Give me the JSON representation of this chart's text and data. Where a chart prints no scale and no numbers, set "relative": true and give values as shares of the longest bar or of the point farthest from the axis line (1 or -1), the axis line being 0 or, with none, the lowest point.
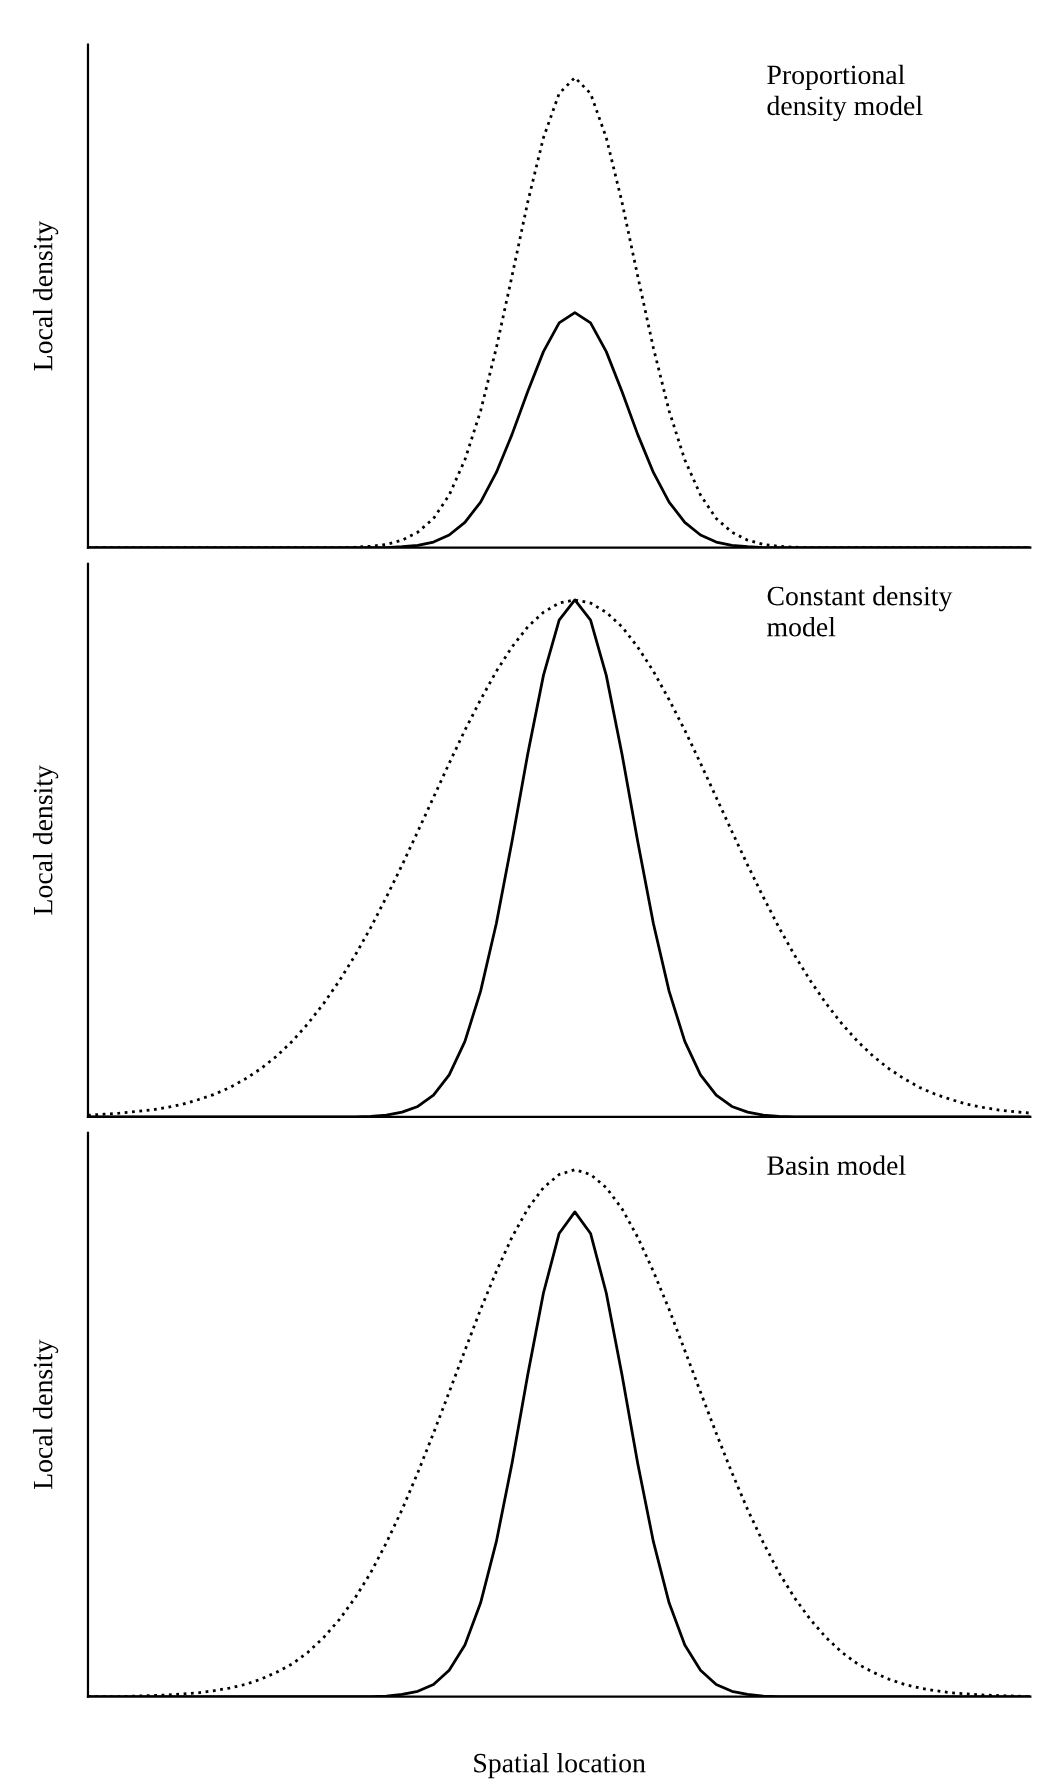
{
  "chart_data": [
    {
      "type": "line",
      "relative": true,
      "ylabel": "Local density",
      "annotations": [
        "Proportional\ndensity model"
      ],
      "categories": [
        null,
        null,
        null,
        null,
        null,
        null,
        null,
        null,
        null,
        null,
        null,
        null,
        null,
        null,
        null,
        null,
        null,
        null,
        null,
        null,
        null,
        null,
        null,
        null,
        null,
        null,
        null,
        null,
        null,
        null,
        null,
        null,
        null,
        null,
        null,
        null,
        null,
        null,
        null,
        null,
        null,
        null,
        null,
        null,
        null,
        null,
        null,
        null,
        null,
        null,
        null,
        null,
        null,
        null,
        null,
        null,
        null,
        null,
        null,
        null,
        null
      ],
      "series": [
        {
          "color": "#000000",
          "line_style": "dotted",
          "values": [
            0,
            0,
            0,
            0,
            0,
            0,
            0,
            0,
            0,
            0,
            0,
            0,
            0,
            0,
            0,
            0,
            0,
            0.001,
            0.003,
            0.007,
            0.016,
            0.033,
            0.062,
            0.112,
            0.187,
            0.291,
            0.425,
            0.578,
            0.735,
            0.872,
            0.966,
            1,
            0.966,
            0.872,
            0.735,
            0.578,
            0.425,
            0.291,
            0.187,
            0.112,
            0.062,
            0.033,
            0.016,
            0.007,
            0.003,
            0.001,
            0,
            0,
            0,
            0,
            0,
            0,
            0,
            0,
            0,
            0,
            0,
            0,
            0,
            0,
            0
          ]
        },
        {
          "color": "#000000",
          "line_style": "solid",
          "values": [
            0,
            0,
            0,
            0,
            0,
            0,
            0,
            0,
            0,
            0,
            0,
            0,
            0,
            0,
            0,
            0,
            0,
            0,
            0,
            0,
            0.002,
            0.005,
            0.012,
            0.027,
            0.054,
            0.097,
            0.16,
            0.241,
            0.332,
            0.417,
            0.478,
            0.5,
            0.478,
            0.417,
            0.332,
            0.241,
            0.16,
            0.097,
            0.054,
            0.027,
            0.012,
            0.005,
            0.002,
            0,
            0,
            0,
            0,
            0,
            0,
            0,
            0,
            0,
            0,
            0,
            0,
            0,
            0,
            0,
            0,
            0,
            0
          ]
        }
      ]
    },
    {
      "type": "line",
      "relative": true,
      "ylabel": "Local density",
      "annotations": [
        "Constant density\nmodel"
      ],
      "categories": [
        null,
        null,
        null,
        null,
        null,
        null,
        null,
        null,
        null,
        null,
        null,
        null,
        null,
        null,
        null,
        null,
        null,
        null,
        null,
        null,
        null,
        null,
        null,
        null,
        null,
        null,
        null,
        null,
        null,
        null,
        null,
        null,
        null,
        null,
        null,
        null,
        null,
        null,
        null,
        null,
        null,
        null,
        null,
        null,
        null,
        null,
        null,
        null,
        null,
        null,
        null,
        null,
        null,
        null,
        null,
        null,
        null,
        null,
        null,
        null,
        null
      ],
      "series": [
        {
          "color": "#000000",
          "line_style": "dotted",
          "values": [
            0.003,
            0.005,
            0.007,
            0.01,
            0.013,
            0.018,
            0.024,
            0.033,
            0.043,
            0.056,
            0.073,
            0.093,
            0.117,
            0.146,
            0.18,
            0.219,
            0.263,
            0.312,
            0.366,
            0.425,
            0.487,
            0.552,
            0.618,
            0.684,
            0.748,
            0.807,
            0.862,
            0.909,
            0.948,
            0.976,
            0.994,
            1,
            0.994,
            0.976,
            0.948,
            0.909,
            0.862,
            0.807,
            0.748,
            0.684,
            0.618,
            0.552,
            0.487,
            0.425,
            0.366,
            0.312,
            0.263,
            0.219,
            0.18,
            0.146,
            0.117,
            0.093,
            0.073,
            0.056,
            0.043,
            0.033,
            0.024,
            0.018,
            0.013,
            0.01,
            0.007
          ]
        },
        {
          "color": "#000000",
          "line_style": "solid",
          "values": [
            0,
            0,
            0,
            0,
            0,
            0,
            0,
            0,
            0,
            0,
            0,
            0,
            0,
            0,
            0,
            0,
            0,
            0,
            0.001,
            0.003,
            0.009,
            0.02,
            0.042,
            0.081,
            0.146,
            0.243,
            0.374,
            0.533,
            0.702,
            0.854,
            0.961,
            1,
            0.961,
            0.854,
            0.702,
            0.533,
            0.374,
            0.243,
            0.146,
            0.081,
            0.042,
            0.02,
            0.009,
            0.003,
            0.001,
            0,
            0,
            0,
            0,
            0,
            0,
            0,
            0,
            0,
            0,
            0,
            0,
            0,
            0,
            0,
            0
          ]
        }
      ]
    },
    {
      "type": "line",
      "relative": true,
      "ylabel": "Local density",
      "xlabel": "Spatial location",
      "annotations": [
        "Basin model"
      ],
      "categories": [
        null,
        null,
        null,
        null,
        null,
        null,
        null,
        null,
        null,
        null,
        null,
        null,
        null,
        null,
        null,
        null,
        null,
        null,
        null,
        null,
        null,
        null,
        null,
        null,
        null,
        null,
        null,
        null,
        null,
        null,
        null,
        null,
        null,
        null,
        null,
        null,
        null,
        null,
        null,
        null,
        null,
        null,
        null,
        null,
        null,
        null,
        null,
        null,
        null,
        null,
        null,
        null,
        null,
        null,
        null,
        null,
        null,
        null,
        null,
        null,
        null
      ],
      "series": [
        {
          "color": "#000000",
          "line_style": "dotted",
          "values": [
            0,
            0,
            0,
            0.001,
            0.002,
            0.003,
            0.005,
            0.007,
            0.011,
            0.016,
            0.023,
            0.033,
            0.046,
            0.062,
            0.084,
            0.112,
            0.146,
            0.187,
            0.235,
            0.292,
            0.355,
            0.425,
            0.5,
            0.578,
            0.657,
            0.735,
            0.807,
            0.872,
            0.926,
            0.966,
            0.991,
            1,
            0.991,
            0.966,
            0.926,
            0.872,
            0.807,
            0.735,
            0.657,
            0.578,
            0.5,
            0.425,
            0.355,
            0.292,
            0.235,
            0.187,
            0.146,
            0.112,
            0.084,
            0.062,
            0.046,
            0.033,
            0.023,
            0.016,
            0.011,
            0.007,
            0.005,
            0.003,
            0.002,
            0.001,
            0
          ]
        },
        {
          "color": "#000000",
          "line_style": "solid",
          "values": [
            0,
            0,
            0,
            0,
            0,
            0,
            0,
            0,
            0,
            0,
            0,
            0,
            0,
            0,
            0,
            0,
            0,
            0,
            0,
            0.001,
            0.004,
            0.01,
            0.023,
            0.05,
            0.098,
            0.178,
            0.294,
            0.443,
            0.611,
            0.766,
            0.879,
            0.92,
            0.879,
            0.766,
            0.611,
            0.443,
            0.294,
            0.178,
            0.098,
            0.05,
            0.023,
            0.01,
            0.004,
            0.001,
            0,
            0,
            0,
            0,
            0,
            0,
            0,
            0,
            0,
            0,
            0,
            0,
            0,
            0,
            0,
            0,
            0
          ]
        }
      ]
    }
  ]
}
